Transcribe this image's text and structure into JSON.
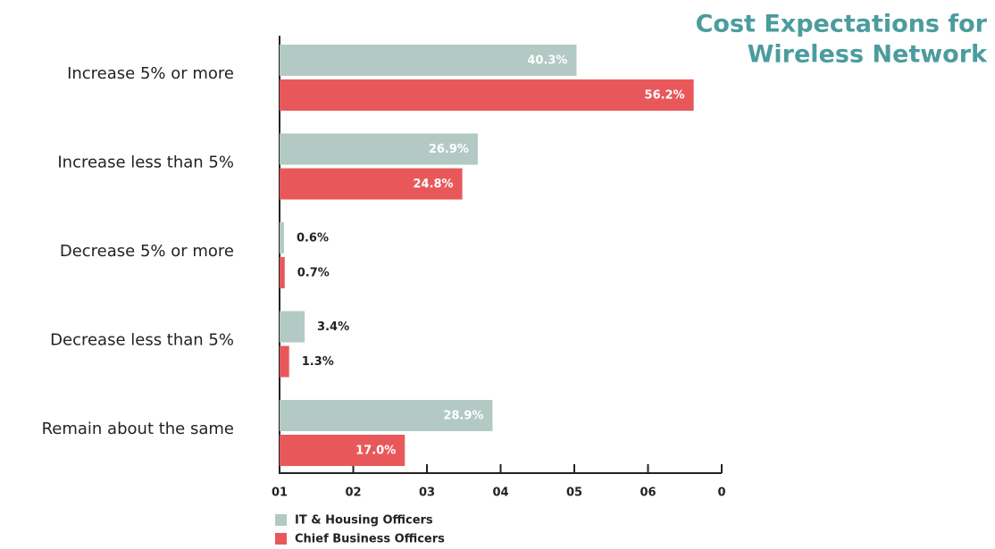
{
  "chart_data": {
    "type": "hbar",
    "title": [
      "Cost Expectations for",
      "Wireless Network"
    ],
    "categories": [
      "Increase 5% or more",
      "Increase less than 5%",
      "Decrease 5% or more",
      "Decrease less than 5%",
      "Remain about the same"
    ],
    "series": [
      {
        "name": "IT & Housing Officers",
        "color": "#b3c9c4",
        "values": [
          40.3,
          26.9,
          0.6,
          3.4,
          28.9
        ],
        "value_labels": [
          "40.3%",
          "26.9%",
          "0.6%",
          "3.4%",
          "28.9%"
        ]
      },
      {
        "name": "Chief Business Officers",
        "color": "#e8585b",
        "values": [
          56.2,
          24.8,
          0.7,
          1.3,
          17.0
        ],
        "value_labels": [
          "56.2%",
          "24.8%",
          "0.7%",
          "1.3%",
          "17.0%"
        ]
      }
    ],
    "xlim": [
      0,
      60
    ],
    "xticks": [
      {
        "value": 0,
        "label": "01"
      },
      {
        "value": 10,
        "label": "02"
      },
      {
        "value": 20,
        "label": "03"
      },
      {
        "value": 30,
        "label": "04"
      },
      {
        "value": 40,
        "label": "05"
      },
      {
        "value": 50,
        "label": "06"
      },
      {
        "value": 60,
        "label": "0"
      }
    ]
  }
}
